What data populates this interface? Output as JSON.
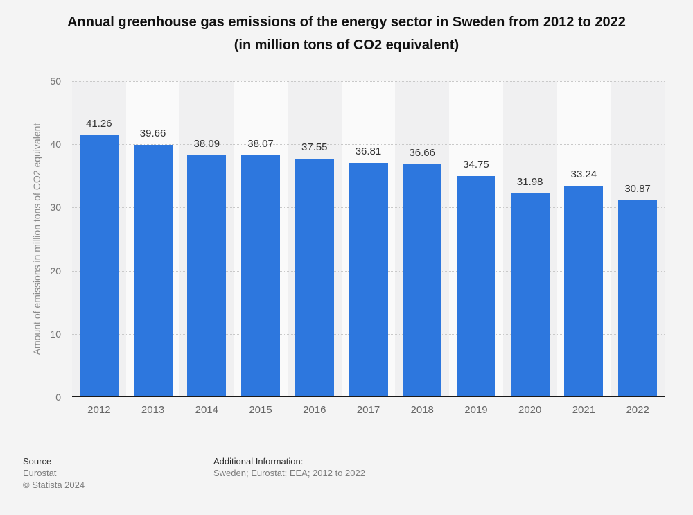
{
  "title": "Annual greenhouse gas emissions of the energy sector in Sweden from 2012 to 2022\n(in million tons of CO2 equivalent)",
  "chart_data": {
    "type": "bar",
    "categories": [
      "2012",
      "2013",
      "2014",
      "2015",
      "2016",
      "2017",
      "2018",
      "2019",
      "2020",
      "2021",
      "2022"
    ],
    "values": [
      41.26,
      39.66,
      38.09,
      38.07,
      37.55,
      36.81,
      36.66,
      34.75,
      31.98,
      33.24,
      30.87
    ],
    "value_labels": [
      "41.26",
      "39.66",
      "38.09",
      "38.07",
      "37.55",
      "36.81",
      "36.66",
      "34.75",
      "31.98",
      "33.24",
      "30.87"
    ],
    "title": "Annual greenhouse gas emissions of the energy sector in Sweden from 2012 to 2022 (in million tons of CO2 equivalent)",
    "xlabel": "",
    "ylabel": "Amount of emissions in million tons of CO2 equivalent",
    "ylim": [
      0,
      50
    ],
    "yticks": [
      "0",
      "10",
      "20",
      "30",
      "40",
      "50"
    ],
    "grid": "horizontal-dotted",
    "legend": "none",
    "bar_color": "#2d77de",
    "stripe_color_odd": "#f0f0f1",
    "stripe_color_even": "#fafafa",
    "axis_line_color": "#1a1a1a",
    "gridline_color": "#c9c9c9"
  },
  "footer": {
    "source_label": "Source",
    "source_value": "Eurostat",
    "copyright": "© Statista 2024",
    "additional_info_label": "Additional Information:",
    "additional_info_value": "Sweden; Eurostat; EEA; 2012 to 2022"
  }
}
